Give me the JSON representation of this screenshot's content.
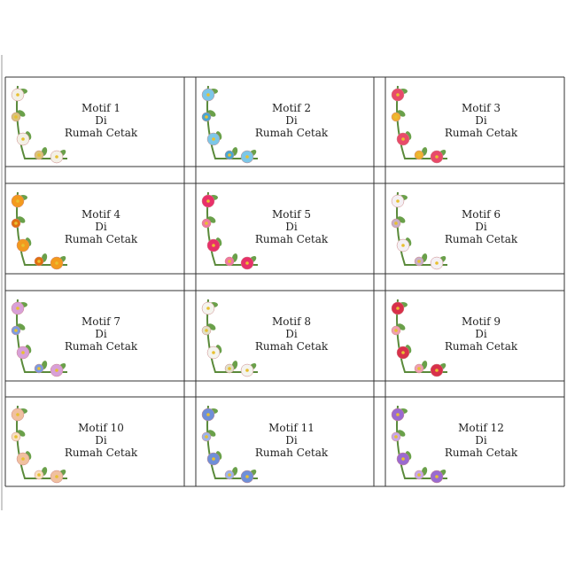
{
  "labels": [
    {
      "title": "Motif 1",
      "line2": "Di",
      "line3": "Rumah Cetak"
    },
    {
      "title": "Motif 2",
      "line2": "Di",
      "line3": "Rumah Cetak"
    },
    {
      "title": "Motif 3",
      "line2": "Di",
      "line3": "Rumah Cetak"
    },
    {
      "title": "Motif 4",
      "line2": "Di",
      "line3": "Rumah Cetak"
    },
    {
      "title": "Motif 5",
      "line2": "Di",
      "line3": "Rumah Cetak"
    },
    {
      "title": "Motif 6",
      "line2": "Di",
      "line3": "Rumah Cetak"
    },
    {
      "title": "Motif 7",
      "line2": "Di",
      "line3": "Rumah Cetak"
    },
    {
      "title": "Motif 8",
      "line2": "Di",
      "line3": "Rumah Cetak"
    },
    {
      "title": "Motif 9",
      "line2": "Di",
      "line3": "Rumah Cetak"
    },
    {
      "title": "Motif 10",
      "line2": "Di",
      "line3": "Rumah Cetak"
    },
    {
      "title": "Motif 11",
      "line2": "Di",
      "line3": "Rumah Cetak"
    },
    {
      "title": "Motif 12",
      "line2": "Di",
      "line3": "Rumah Cetak"
    }
  ]
}
